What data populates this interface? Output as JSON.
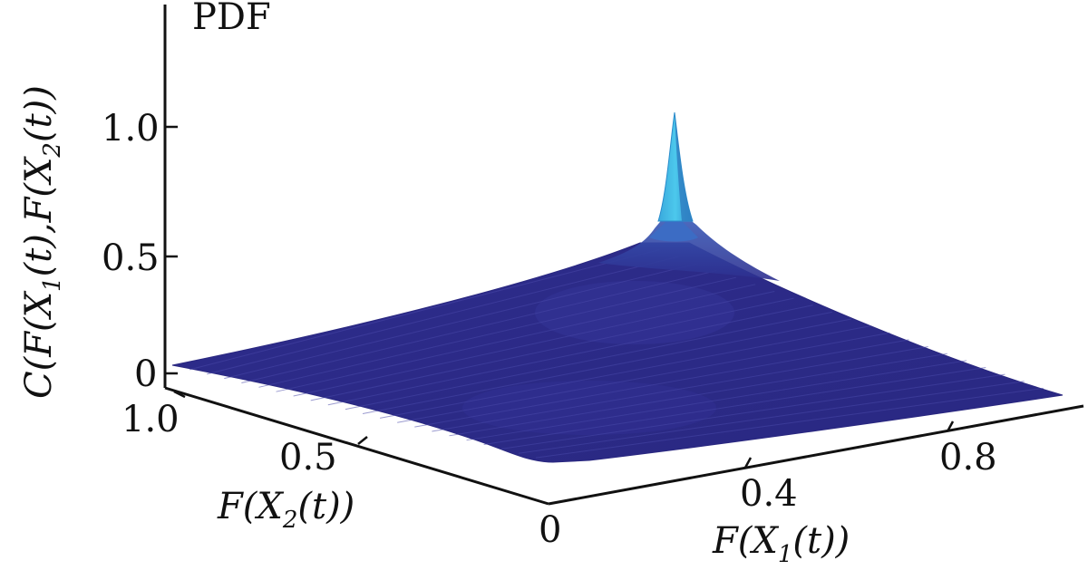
{
  "chart_data": {
    "type": "surface3d",
    "panel_label": "PDF",
    "xlabel": "F(X1(t))",
    "ylabel": "F(X2(t))",
    "zlabel": "C(F(X1(t),F(X2(t))",
    "axis_labels": {
      "x": {
        "pre": "F(X",
        "sub": "1",
        "post": "(t))"
      },
      "y": {
        "pre": "F(X",
        "sub": "2",
        "post": "(t))"
      },
      "z": {
        "pre": "C(F(X",
        "sub1": "1",
        "mid": "(t),F(X",
        "sub2": "2",
        "post": "(t))"
      }
    },
    "x_ticks": [
      "0.4",
      "0.8"
    ],
    "y_ticks": [
      "1.0",
      "0.5"
    ],
    "z_ticks": [
      "1.0",
      "0.5",
      "0"
    ],
    "origin_label": "0",
    "xlim": [
      0,
      1
    ],
    "ylim": [
      0,
      1
    ],
    "zlim": [
      0,
      1.5
    ],
    "grid": false,
    "surface": {
      "description_values": {
        "baseline_density": 0.05,
        "peak_location": [
          0.38,
          1.0
        ],
        "peak_value": 1.05,
        "secondary_level": 0.5
      }
    },
    "colors": {
      "surface_low": "#2c2a8a",
      "surface_mid": "#3d4ab0",
      "surface_high": "#3b9bdc",
      "peak": "#42c2e8",
      "axis": "#111111"
    }
  }
}
